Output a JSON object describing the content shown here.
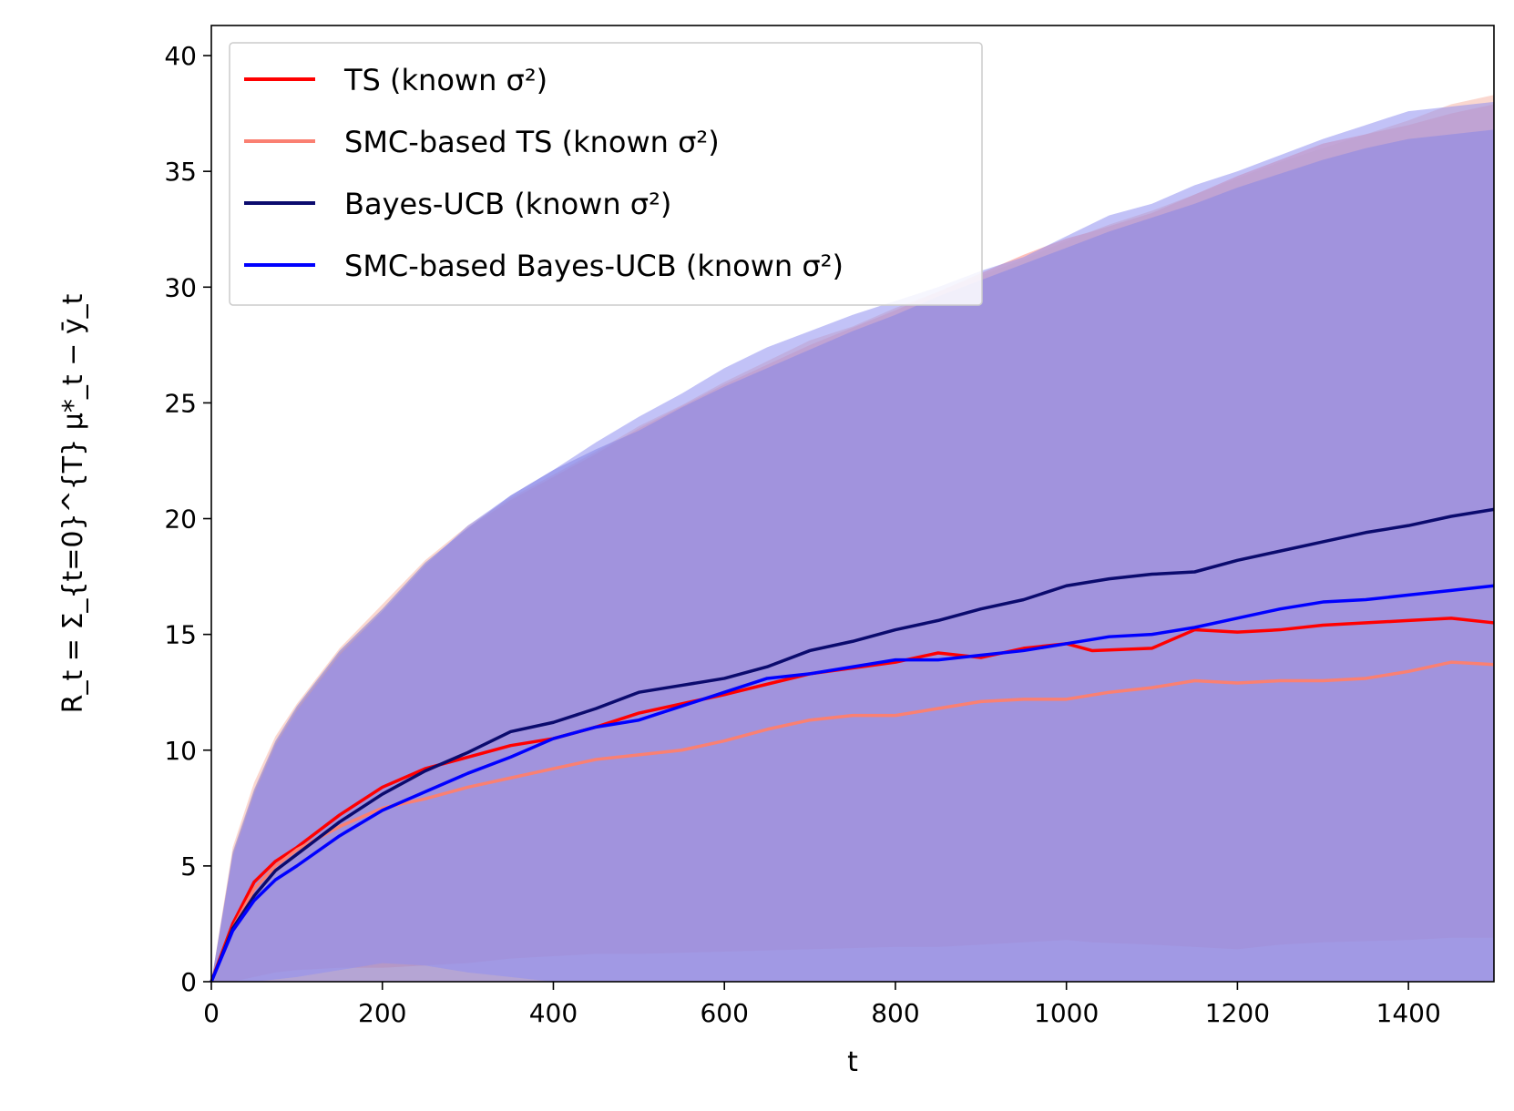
{
  "chart_data": {
    "type": "line",
    "title": "",
    "xlabel": "t",
    "ylabel": "R_t = Σ_{t=0}^{T} μ*_t − ȳ_t",
    "xlim": [
      0,
      1500
    ],
    "ylim": [
      0,
      41.3
    ],
    "xticks": [
      0,
      200,
      400,
      600,
      800,
      1000,
      1200,
      1400
    ],
    "yticks": [
      0,
      5,
      10,
      15,
      20,
      25,
      30,
      35,
      40
    ],
    "grid": false,
    "legend_position": "top-left",
    "series": [
      {
        "name": "TS (known σ²)",
        "color": "#ff0000",
        "band_color": "#ff8a80",
        "x": [
          0,
          25,
          50,
          75,
          100,
          150,
          200,
          250,
          300,
          350,
          400,
          450,
          500,
          600,
          700,
          800,
          850,
          900,
          950,
          1000,
          1030,
          1100,
          1150,
          1200,
          1250,
          1300,
          1400,
          1450,
          1500
        ],
        "values": [
          0,
          2.5,
          4.3,
          5.2,
          5.8,
          7.2,
          8.4,
          9.2,
          9.7,
          10.2,
          10.5,
          11.0,
          11.6,
          12.4,
          13.3,
          13.8,
          14.2,
          14.0,
          14.4,
          14.6,
          14.3,
          14.4,
          15.2,
          15.1,
          15.2,
          15.4,
          15.6,
          15.7,
          15.5
        ],
        "band_upper": [
          0,
          5.5,
          8.2,
          10.3,
          11.8,
          14.2,
          16.0,
          18.0,
          19.6,
          20.8,
          21.8,
          22.8,
          23.9,
          25.8,
          27.5,
          29.0,
          29.8,
          30.6,
          31.4,
          32.1,
          32.4,
          33.2,
          34.0,
          34.8,
          35.5,
          36.2,
          37.0,
          37.5,
          37.9
        ],
        "band_lower": [
          0,
          0,
          0.2,
          0.4,
          0.5,
          0.6,
          0.6,
          0.7,
          0.8,
          1.0,
          1.1,
          1.2,
          1.2,
          1.3,
          1.4,
          1.5,
          1.5,
          1.6,
          1.7,
          1.8,
          1.7,
          1.6,
          1.5,
          1.4,
          1.6,
          1.7,
          1.8,
          1.9,
          1.9
        ]
      },
      {
        "name": "SMC-based TS (known σ²)",
        "color": "#fa8072",
        "band_color": "#f5b7a8",
        "x": [
          0,
          25,
          50,
          75,
          100,
          150,
          200,
          250,
          300,
          350,
          400,
          450,
          500,
          550,
          600,
          650,
          700,
          750,
          800,
          850,
          900,
          950,
          1000,
          1050,
          1100,
          1150,
          1200,
          1250,
          1300,
          1350,
          1400,
          1450,
          1500
        ],
        "values": [
          0,
          2.3,
          4.0,
          5.0,
          5.7,
          6.7,
          7.5,
          7.9,
          8.4,
          8.8,
          9.2,
          9.6,
          9.8,
          10.0,
          10.4,
          10.9,
          11.3,
          11.5,
          11.5,
          11.8,
          12.1,
          12.2,
          12.2,
          12.5,
          12.7,
          13.0,
          12.9,
          13.0,
          13.0,
          13.1,
          13.4,
          13.8,
          13.7
        ],
        "band_upper": [
          0,
          5.8,
          8.6,
          10.6,
          12.0,
          14.4,
          16.3,
          18.2,
          19.7,
          20.9,
          21.9,
          22.9,
          24.0,
          24.9,
          25.9,
          26.8,
          27.7,
          28.3,
          29.1,
          29.8,
          30.5,
          31.2,
          32.0,
          32.7,
          33.3,
          34.0,
          34.7,
          35.4,
          36.0,
          36.6,
          37.2,
          37.9,
          38.3
        ],
        "band_lower": [
          0,
          0,
          0,
          0,
          0,
          0,
          0,
          0,
          0,
          0,
          0,
          0,
          0,
          0,
          0,
          0,
          0,
          0,
          0,
          0,
          0,
          0,
          0,
          0,
          0,
          0,
          0,
          0,
          0,
          0,
          0,
          0,
          0
        ]
      },
      {
        "name": "Bayes-UCB (known σ²)",
        "color": "#0b0b6e",
        "band_color": "#7b7bd9",
        "x": [
          0,
          25,
          50,
          75,
          100,
          150,
          200,
          250,
          300,
          350,
          400,
          450,
          500,
          550,
          600,
          650,
          700,
          750,
          800,
          850,
          900,
          950,
          1000,
          1050,
          1100,
          1150,
          1200,
          1250,
          1300,
          1350,
          1400,
          1450,
          1500
        ],
        "values": [
          0,
          2.3,
          3.7,
          4.8,
          5.5,
          6.9,
          8.1,
          9.1,
          9.9,
          10.8,
          11.2,
          11.8,
          12.5,
          12.8,
          13.1,
          13.6,
          14.3,
          14.7,
          15.2,
          15.6,
          16.1,
          16.5,
          17.1,
          17.4,
          17.6,
          17.7,
          18.2,
          18.6,
          19.0,
          19.4,
          19.7,
          20.1,
          20.4
        ],
        "band_upper": [
          0,
          5.6,
          8.3,
          10.4,
          11.9,
          14.3,
          16.1,
          18.1,
          19.6,
          21.0,
          22.1,
          23.0,
          23.8,
          24.8,
          25.7,
          26.5,
          27.3,
          28.1,
          28.8,
          29.6,
          30.3,
          31.0,
          31.7,
          32.4,
          33.0,
          33.6,
          34.3,
          34.9,
          35.5,
          36.0,
          36.4,
          36.6,
          36.8
        ],
        "band_lower": [
          0,
          0,
          0,
          0,
          0,
          0,
          0,
          0,
          0,
          0,
          0,
          0,
          0,
          0,
          0,
          0,
          0,
          0,
          0,
          0,
          0,
          0,
          0,
          0,
          0,
          0,
          0,
          0,
          0,
          0,
          0,
          0,
          0
        ]
      },
      {
        "name": "SMC-based Bayes-UCB (known σ²)",
        "color": "#0000ff",
        "band_color": "#8f8ff0",
        "x": [
          0,
          25,
          50,
          75,
          100,
          150,
          200,
          250,
          300,
          350,
          400,
          450,
          500,
          550,
          600,
          650,
          700,
          750,
          800,
          850,
          900,
          950,
          1000,
          1050,
          1100,
          1150,
          1200,
          1250,
          1300,
          1350,
          1400,
          1450,
          1500
        ],
        "values": [
          0,
          2.2,
          3.5,
          4.4,
          5.0,
          6.3,
          7.4,
          8.2,
          9.0,
          9.7,
          10.5,
          11.0,
          11.3,
          11.9,
          12.5,
          13.1,
          13.3,
          13.6,
          13.9,
          13.9,
          14.1,
          14.3,
          14.6,
          14.9,
          15.0,
          15.3,
          15.7,
          16.1,
          16.4,
          16.5,
          16.7,
          16.9,
          17.1
        ],
        "band_upper": [
          0,
          5.4,
          8.1,
          10.2,
          11.7,
          14.1,
          16.0,
          18.0,
          19.7,
          21.0,
          22.1,
          23.3,
          24.4,
          25.4,
          26.5,
          27.4,
          28.1,
          28.8,
          29.4,
          30.0,
          30.7,
          31.3,
          32.2,
          33.1,
          33.6,
          34.4,
          35.0,
          35.7,
          36.4,
          37.0,
          37.6,
          37.8,
          38.0
        ],
        "band_lower": [
          0,
          0,
          0,
          0.1,
          0.2,
          0.5,
          0.8,
          0.7,
          0.4,
          0.2,
          0,
          0,
          0,
          0,
          0,
          0,
          0,
          0,
          0,
          0,
          0,
          0,
          0,
          0,
          0,
          0,
          0,
          0,
          0,
          0,
          0,
          0,
          0
        ]
      }
    ]
  }
}
